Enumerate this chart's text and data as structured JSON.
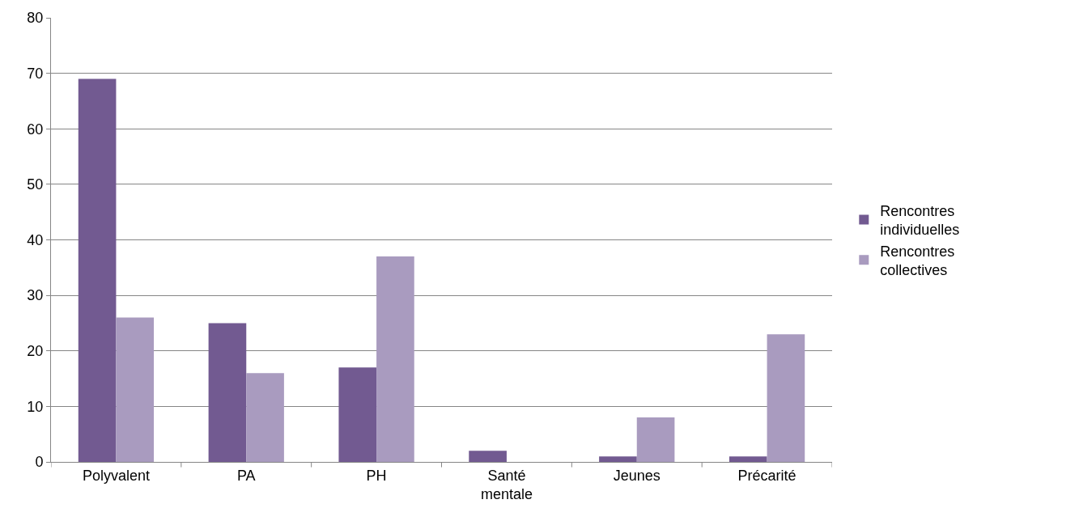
{
  "chart_data": {
    "type": "bar",
    "categories": [
      "Polyvalent",
      "PA",
      "PH",
      "Santé mentale",
      "Jeunes",
      "Précarité"
    ],
    "series": [
      {
        "name": "Rencontres individuelles",
        "color": "#725a91",
        "values": [
          69,
          25,
          17,
          2,
          1,
          1
        ]
      },
      {
        "name": "Rencontres collectives",
        "color": "#a99bbf",
        "values": [
          26,
          16,
          37,
          0,
          8,
          23
        ]
      }
    ],
    "ylim": [
      0,
      80
    ],
    "yticks": [
      0,
      10,
      20,
      30,
      40,
      50,
      60,
      70,
      80
    ],
    "grid": "y",
    "legend": "right"
  }
}
